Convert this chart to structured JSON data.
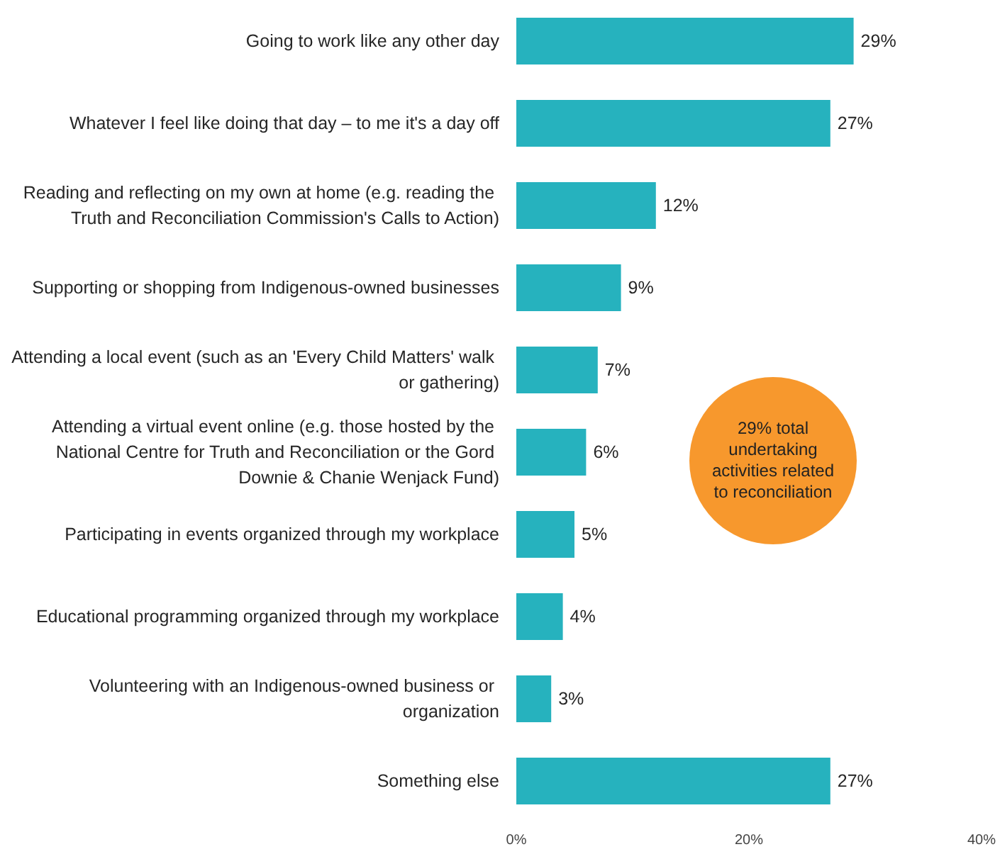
{
  "chart_data": {
    "type": "bar",
    "orientation": "horizontal",
    "categories": [
      "Going to work like any other day",
      "Whatever I feel like doing that day – to me it's a day off",
      "Reading and reflecting on my own at home (e.g. reading the Truth and Reconciliation Commission's Calls to Action)",
      "Supporting or shopping from Indigenous-owned businesses",
      "Attending a local event (such as an 'Every Child Matters' walk or gathering)",
      "Attending a virtual event online (e.g. those hosted by the National Centre for Truth and Reconciliation or the Gord Downie & Chanie Wenjack Fund)",
      "Participating in events organized through my workplace",
      "Educational programming organized through my workplace",
      "Volunteering with an Indigenous-owned business or organization",
      "Something else"
    ],
    "values": [
      29,
      27,
      12,
      9,
      7,
      6,
      5,
      4,
      3,
      27
    ],
    "value_labels": [
      "29%",
      "27%",
      "12%",
      "9%",
      "7%",
      "6%",
      "5%",
      "4%",
      "3%",
      "27%"
    ],
    "color": "#26b2be",
    "xlim": [
      0,
      40
    ],
    "xticks": [
      {
        "value": 0,
        "label": "0%"
      },
      {
        "value": 20,
        "label": "20%"
      },
      {
        "value": 40,
        "label": "40%"
      }
    ],
    "annotations": [
      "29% total undertaking activities related to reconciliation"
    ]
  }
}
